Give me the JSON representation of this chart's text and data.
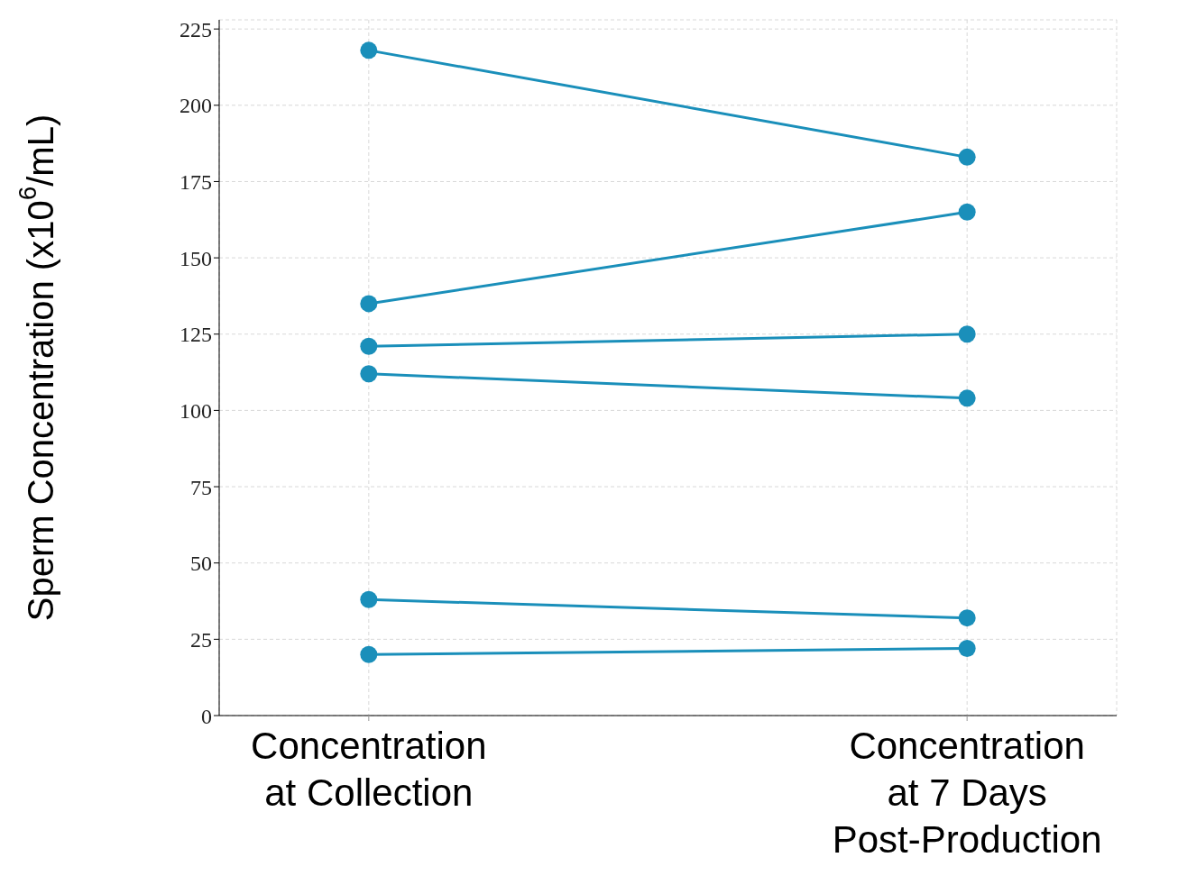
{
  "chart_data": {
    "type": "line",
    "ylabel": "Sperm Concentration (x10$^{6}$/mL)",
    "categories": [
      "Concentration at Collection",
      "Concentration at 7 Days Post-Production"
    ],
    "series": [
      {
        "color": "#1a8fba",
        "values": [
          218,
          183
        ]
      },
      {
        "color": "#1a8fba",
        "values": [
          135,
          165
        ]
      },
      {
        "color": "#1a8fba",
        "values": [
          121,
          125
        ]
      },
      {
        "color": "#1a8fba",
        "values": [
          112,
          104
        ]
      },
      {
        "color": "#1a8fba",
        "values": [
          38,
          32
        ]
      },
      {
        "color": "#1a8fba",
        "values": [
          20,
          22
        ]
      }
    ],
    "ylim": [
      0,
      228
    ],
    "yticks": [
      0,
      25,
      50,
      75,
      100,
      125,
      150,
      175,
      200,
      225
    ],
    "grid": true,
    "marker": "circle",
    "line_style": "solid",
    "legend": false
  }
}
